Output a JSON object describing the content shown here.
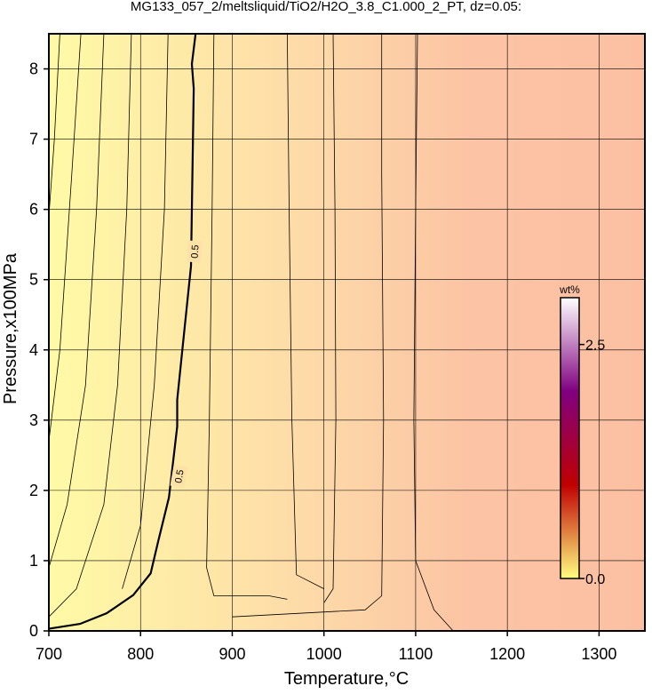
{
  "chart_data": {
    "type": "contour",
    "title": "MG133_057_2/meltsliquid/TiO2/H2O_3.8_C1.000_2_PT, dz=0.05:",
    "x_label": "Temperature,°C",
    "y_label": "Pressure,x100MPa",
    "xlim": [
      700,
      1350
    ],
    "ylim": [
      0,
      8.5
    ],
    "xticks": [
      700,
      800,
      900,
      1000,
      1100,
      1200,
      1300
    ],
    "yticks": [
      0,
      1,
      2,
      3,
      4,
      5,
      6,
      7,
      8
    ],
    "grid": true,
    "main_contour": {
      "label": "0.5",
      "x": [
        700,
        734,
        763,
        792,
        811,
        819,
        831,
        840,
        840,
        845,
        855,
        858,
        856,
        860
      ],
      "y": [
        0.03,
        0.1,
        0.25,
        0.51,
        0.82,
        1.26,
        1.9,
        2.91,
        3.29,
        3.93,
        5.19,
        7.72,
        8.07,
        8.5
      ]
    },
    "contours": [
      {
        "x": [
          712,
          706,
          700
        ],
        "y": [
          8.5,
          7.0,
          5.9
        ]
      },
      {
        "x": [
          735,
          725,
          712,
          700
        ],
        "y": [
          8.5,
          6.5,
          4.0,
          2.7
        ]
      },
      {
        "x": [
          760,
          752,
          740,
          720,
          700
        ],
        "y": [
          8.5,
          6.0,
          3.5,
          1.8,
          0.9
        ]
      },
      {
        "x": [
          790,
          785,
          775,
          760,
          730,
          700
        ],
        "y": [
          8.5,
          6.0,
          3.5,
          1.8,
          0.6,
          0.2
        ]
      },
      {
        "x": [
          830,
          826,
          815,
          800,
          780
        ],
        "y": [
          8.5,
          6.0,
          3.5,
          1.5,
          0.6
        ]
      },
      {
        "x": [
          880,
          878,
          875,
          872,
          880,
          940,
          960
        ],
        "y": [
          8.5,
          6.0,
          3.0,
          0.9,
          0.5,
          0.5,
          0.45
        ]
      },
      {
        "x": [
          960,
          962,
          965,
          970,
          1000
        ],
        "y": [
          8.5,
          6.0,
          3.0,
          0.8,
          0.6
        ]
      },
      {
        "x": [
          1010,
          1012,
          1013,
          1010,
          1000
        ],
        "y": [
          8.5,
          6.0,
          3.0,
          0.6,
          0.4
        ]
      },
      {
        "x": [
          1063,
          1063,
          1065,
          1063,
          1045,
          900
        ],
        "y": [
          8.5,
          6.5,
          3.0,
          0.5,
          0.3,
          0.2
        ]
      },
      {
        "x": [
          1102,
          1100,
          1098,
          1100,
          1120,
          1141
        ],
        "y": [
          8.5,
          6.0,
          3.0,
          1.0,
          0.3,
          0.0
        ]
      }
    ],
    "colorbar": {
      "label": "wt%",
      "lim": [
        0,
        3.0
      ],
      "colors": [
        "#ffff80",
        "#c00000",
        "#800080",
        "#ffffff"
      ],
      "ticks": [
        {
          "value": 0,
          "label": "0.0"
        },
        2.5
      ]
    }
  }
}
